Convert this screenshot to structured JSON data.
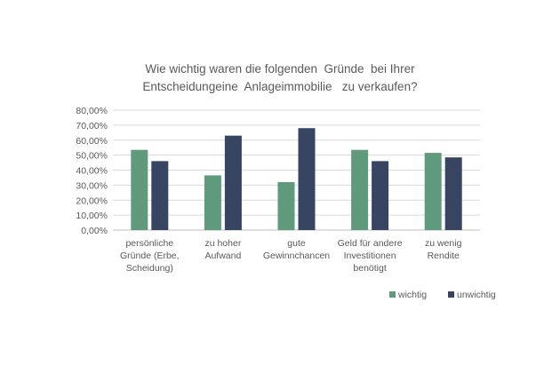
{
  "chart_data": {
    "type": "bar",
    "title_lines": [
      "Wie wichtig waren die folgenden  Gründe  bei Ihrer",
      "Entscheidungeine  Anlageimmobilie   zu verkaufen?"
    ],
    "categories": [
      [
        "persönliche",
        "Gründe (Erbe,",
        "Scheidung)"
      ],
      [
        "zu hoher",
        "Aufwand"
      ],
      [
        "gute",
        "Gewinnchancen"
      ],
      [
        "Geld für andere",
        "Investitionen",
        "benötigt"
      ],
      [
        "zu wenig",
        "Rendite"
      ]
    ],
    "series": [
      {
        "name": "wichtig",
        "color": "#5f9a7c",
        "values": [
          0.535,
          0.365,
          0.32,
          0.535,
          0.515
        ]
      },
      {
        "name": "unwichtig",
        "color": "#374563",
        "values": [
          0.46,
          0.63,
          0.68,
          0.46,
          0.485
        ]
      }
    ],
    "ylim": [
      0,
      0.8
    ],
    "yticks": [
      "0,00%",
      "10,00%",
      "20,00%",
      "30,00%",
      "40,00%",
      "50,00%",
      "60,00%",
      "70,00%",
      "80,00%"
    ],
    "grid": true,
    "legend_position": "bottom-right"
  }
}
